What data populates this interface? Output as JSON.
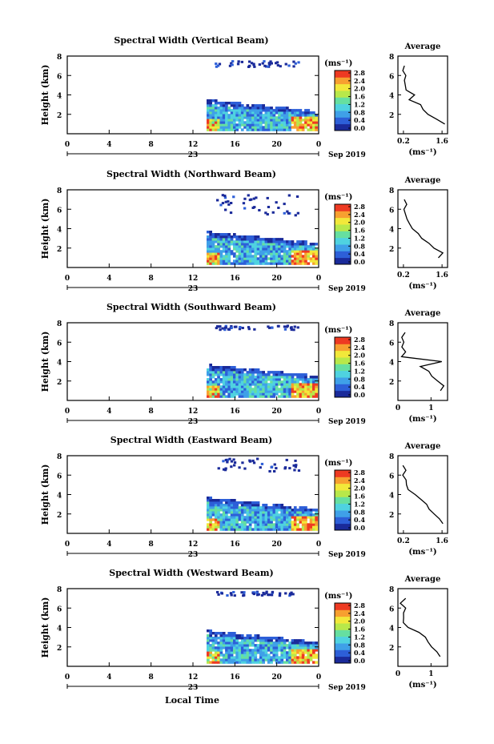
{
  "figure": {
    "xlabel_bottom": "Local Time",
    "date_label": "Sep 2019",
    "day_label": "23",
    "x_ticks": [
      "0",
      "4",
      "8",
      "12",
      "16",
      "20",
      "0"
    ],
    "xlim_hours": [
      0,
      24
    ],
    "ylabel": "Height (km)",
    "ylim_km": [
      0,
      8
    ],
    "y_ticks": [
      "2",
      "4",
      "6",
      "8"
    ],
    "colorbar_units": "(ms⁻¹)",
    "colorbar_ticks": [
      "0.0",
      "0.4",
      "0.8",
      "1.2",
      "1.6",
      "2.0",
      "2.4",
      "2.8"
    ],
    "colorbar_colors": [
      "#1a2a9a",
      "#2d5fd8",
      "#3fa0e8",
      "#4fd2e0",
      "#66dfa0",
      "#b8e84a",
      "#f2e83a",
      "#f7a030",
      "#ee3a22"
    ],
    "profile_title": "Average",
    "profile_xlabel": "(ms⁻¹)",
    "profile_y_ticks": [
      "2",
      "4",
      "6",
      "8"
    ]
  },
  "panels": [
    {
      "title": "Spectral Width (Vertical Beam)",
      "profile_xticks": [
        "0.2",
        "1.6"
      ],
      "profile_xlim": [
        0,
        1.8
      ]
    },
    {
      "title": "Spectral Width (Northward Beam)",
      "profile_xticks": [
        "0.2",
        "1.6"
      ],
      "profile_xlim": [
        0,
        1.8
      ]
    },
    {
      "title": "Spectral Width (Southward Beam)",
      "profile_xticks": [
        "0",
        "1"
      ],
      "profile_xlim": [
        0,
        1.5
      ]
    },
    {
      "title": "Spectral Width (Eastward Beam)",
      "profile_xticks": [
        "0.2",
        "1.6"
      ],
      "profile_xlim": [
        0,
        1.8
      ]
    },
    {
      "title": "Spectral Width (Westward Beam)",
      "profile_xticks": [
        "0",
        "1"
      ],
      "profile_xlim": [
        0,
        1.5
      ]
    }
  ],
  "chart_data": [
    {
      "type": "heatmap",
      "title": "Spectral Width (Vertical Beam)",
      "xlabel": "",
      "ylabel": "Height (km)",
      "xlim": [
        0,
        24
      ],
      "ylim": [
        0,
        8
      ],
      "colorbar_range": [
        0.0,
        2.8
      ],
      "data_coverage": {
        "low_layer_start_hour": 13.3,
        "low_layer_top_km": 3.4,
        "upper_echo_km": [
          7.0,
          7.6
        ]
      }
    },
    {
      "type": "line",
      "title": "Average",
      "xlabel": "(ms⁻¹)",
      "xlim": [
        0,
        1.8
      ],
      "ylim": [
        0,
        8
      ],
      "series": [
        {
          "heights_km": [
            1.0,
            1.5,
            2.0,
            2.5,
            3.0,
            3.5,
            4.0,
            4.5,
            5.0,
            5.5,
            6.0,
            6.5,
            7.0
          ],
          "values": [
            1.7,
            1.4,
            1.1,
            0.9,
            0.8,
            0.4,
            0.6,
            0.3,
            0.3,
            0.2,
            0.3,
            0.2,
            0.2
          ]
        }
      ]
    },
    {
      "type": "heatmap",
      "title": "Spectral Width (Northward Beam)",
      "xlabel": "",
      "ylabel": "Height (km)",
      "xlim": [
        0,
        24
      ],
      "ylim": [
        0,
        8
      ],
      "colorbar_range": [
        0.0,
        2.8
      ],
      "data_coverage": {
        "low_layer_start_hour": 13.3,
        "low_layer_top_km": 3.6,
        "upper_echo_km": [
          5.5,
          7.8
        ]
      }
    },
    {
      "type": "line",
      "title": "Average",
      "xlabel": "(ms⁻¹)",
      "xlim": [
        0,
        1.8
      ],
      "ylim": [
        0,
        8
      ],
      "series": [
        {
          "heights_km": [
            1.0,
            1.5,
            2.0,
            2.5,
            3.0,
            3.5,
            4.0,
            4.5,
            5.0,
            5.5,
            6.0,
            6.5,
            7.0
          ],
          "values": [
            1.5,
            1.6,
            1.3,
            1.1,
            0.9,
            0.7,
            0.5,
            0.4,
            0.3,
            0.3,
            0.2,
            0.3,
            0.2
          ]
        }
      ]
    },
    {
      "type": "heatmap",
      "title": "Spectral Width (Southward Beam)",
      "xlabel": "",
      "ylabel": "Height (km)",
      "xlim": [
        0,
        24
      ],
      "ylim": [
        0,
        8
      ],
      "colorbar_range": [
        0.0,
        2.8
      ],
      "data_coverage": {
        "low_layer_start_hour": 13.3,
        "low_layer_top_km": 3.6,
        "upper_echo_km": [
          7.4,
          7.8
        ]
      }
    },
    {
      "type": "line",
      "title": "Average",
      "xlabel": "(ms⁻¹)",
      "xlim": [
        0,
        1.5
      ],
      "ylim": [
        0,
        8
      ],
      "series": [
        {
          "heights_km": [
            1.0,
            1.5,
            2.0,
            2.5,
            3.0,
            3.5,
            4.0,
            4.5,
            5.0,
            5.5,
            6.0,
            6.5,
            7.0
          ],
          "values": [
            1.3,
            1.4,
            1.2,
            1.0,
            0.9,
            0.7,
            1.3,
            0.1,
            0.2,
            0.1,
            0.2,
            0.1,
            0.2
          ]
        }
      ]
    },
    {
      "type": "heatmap",
      "title": "Spectral Width (Eastward Beam)",
      "xlabel": "",
      "ylabel": "Height (km)",
      "xlim": [
        0,
        24
      ],
      "ylim": [
        0,
        8
      ],
      "colorbar_range": [
        0.0,
        2.8
      ],
      "data_coverage": {
        "low_layer_start_hour": 13.3,
        "low_layer_top_km": 3.6,
        "upper_echo_km": [
          6.5,
          7.8
        ]
      }
    },
    {
      "type": "line",
      "title": "Average",
      "xlabel": "(ms⁻¹)",
      "xlim": [
        0,
        1.8
      ],
      "ylim": [
        0,
        8
      ],
      "series": [
        {
          "heights_km": [
            1.0,
            1.5,
            2.0,
            2.5,
            3.0,
            3.5,
            4.0,
            4.5,
            5.0,
            5.5,
            6.0,
            6.5,
            7.0
          ],
          "values": [
            1.6,
            1.5,
            1.3,
            1.1,
            1.0,
            0.8,
            0.6,
            0.4,
            0.3,
            0.3,
            0.2,
            0.3,
            0.2
          ]
        }
      ]
    },
    {
      "type": "heatmap",
      "title": "Spectral Width (Westward Beam)",
      "xlabel": "Local Time",
      "ylabel": "Height (km)",
      "xlim": [
        0,
        24
      ],
      "ylim": [
        0,
        8
      ],
      "colorbar_range": [
        0.0,
        2.8
      ],
      "data_coverage": {
        "low_layer_start_hour": 13.3,
        "low_layer_top_km": 3.6,
        "upper_echo_km": [
          7.4,
          7.8
        ]
      }
    },
    {
      "type": "line",
      "title": "Average",
      "xlabel": "(ms⁻¹)",
      "xlim": [
        0,
        1.5
      ],
      "ylim": [
        0,
        8
      ],
      "series": [
        {
          "heights_km": [
            1.0,
            1.5,
            2.0,
            2.5,
            3.0,
            3.5,
            4.0,
            4.5,
            5.0,
            5.5,
            6.0,
            6.5,
            7.0
          ],
          "values": [
            1.3,
            1.2,
            1.0,
            0.9,
            0.8,
            0.6,
            0.3,
            0.2,
            0.2,
            0.2,
            0.2,
            0.1,
            0.2
          ]
        }
      ]
    }
  ]
}
